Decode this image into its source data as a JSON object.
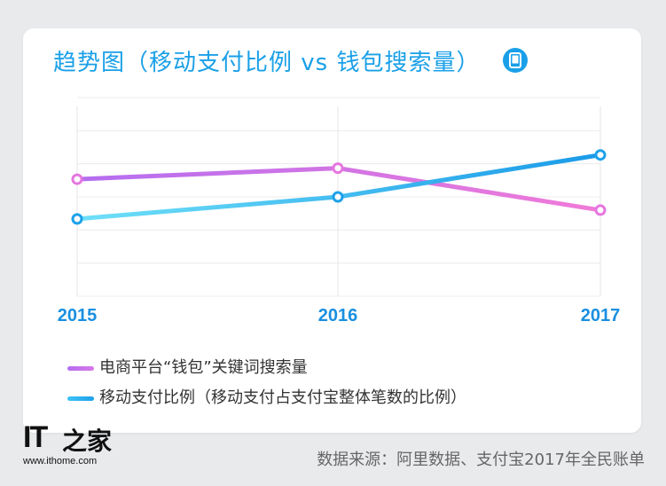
{
  "chart_data": {
    "type": "line",
    "title": "趋势图（移动支付比例 vs 钱包搜索量）",
    "categories": [
      "2015",
      "2016",
      "2017"
    ],
    "series": [
      {
        "name": "电商平台“钱包”关键词搜索量",
        "values": [
          5.3,
          5.8,
          3.9
        ],
        "color": "#e676e0"
      },
      {
        "name": "移动支付比例（移动支付占支付宝整体笔数的比例）",
        "values": [
          3.5,
          4.5,
          6.4
        ],
        "color": "#1da1ea"
      }
    ],
    "ylim": [
      0,
      9
    ],
    "grid": true,
    "legend": "bottom-left"
  },
  "legend": {
    "items": [
      {
        "label": "电商平台“钱包”关键词搜索量",
        "color": "#b46ef0"
      },
      {
        "label": "移动支付比例（移动支付占支付宝整体笔数的比例）",
        "color": "#3fc3f5"
      }
    ]
  },
  "source": "数据来源：阿里数据、支付宝2017年全民账单",
  "watermark": {
    "brand": "IT之家",
    "url": "www.ithome.com"
  },
  "icons": {
    "title_icon": "phone-icon"
  }
}
